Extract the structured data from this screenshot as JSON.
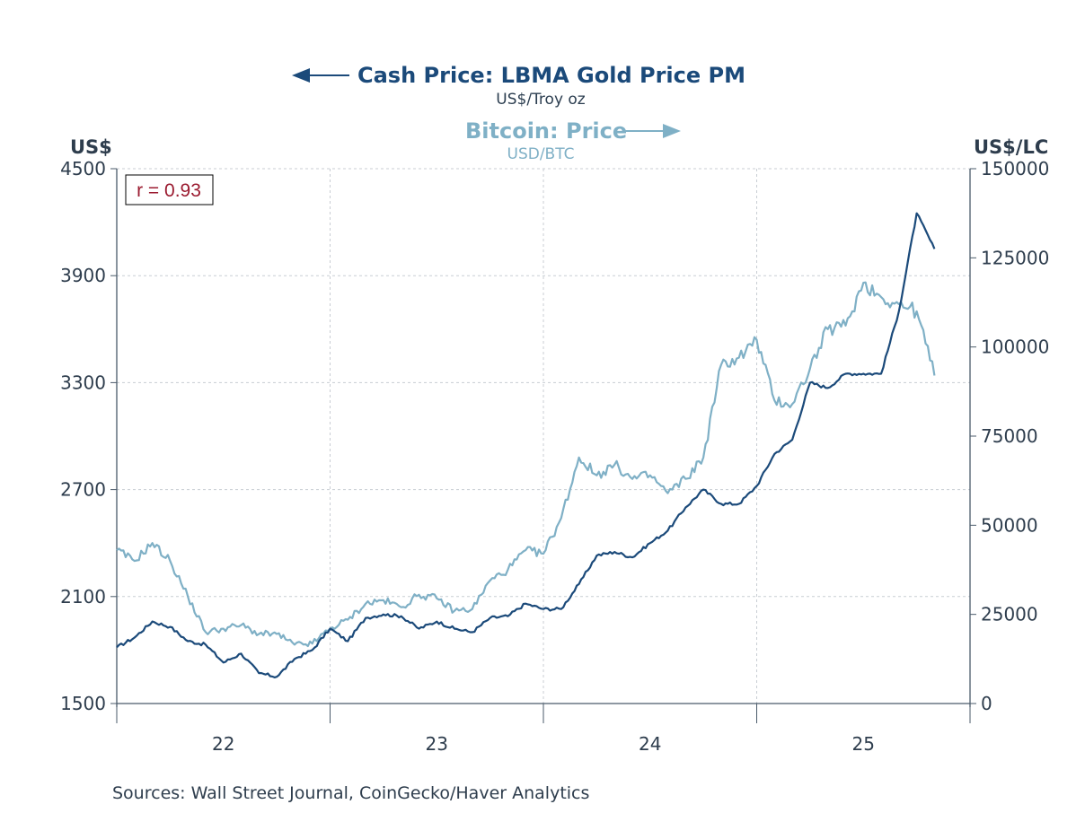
{
  "chart_data": {
    "type": "line",
    "title": "Cash Price: LBMA Gold Price PM vs Bitcoin: Price",
    "series": [
      {
        "name": "Cash Price: LBMA Gold Price PM",
        "units": "US$/Troy oz",
        "axis": "left",
        "color": "#1b4a7a",
        "x": [
          "2022-01",
          "2022-02",
          "2022-03",
          "2022-04",
          "2022-05",
          "2022-06",
          "2022-07",
          "2022-08",
          "2022-09",
          "2022-10",
          "2022-11",
          "2022-12",
          "2023-01",
          "2023-02",
          "2023-03",
          "2023-04",
          "2023-05",
          "2023-06",
          "2023-07",
          "2023-08",
          "2023-09",
          "2023-10",
          "2023-11",
          "2023-12",
          "2024-01",
          "2024-02",
          "2024-03",
          "2024-04",
          "2024-05",
          "2024-06",
          "2024-07",
          "2024-08",
          "2024-09",
          "2024-10",
          "2024-11",
          "2024-12",
          "2025-01",
          "2025-02",
          "2025-03",
          "2025-04",
          "2025-05",
          "2025-06",
          "2025-07",
          "2025-08",
          "2025-09",
          "2025-10",
          "2025-11"
        ],
        "values": [
          1815,
          1870,
          1960,
          1930,
          1850,
          1830,
          1730,
          1780,
          1670,
          1650,
          1750,
          1800,
          1920,
          1850,
          1980,
          2000,
          1990,
          1920,
          1960,
          1920,
          1900,
          1980,
          1990,
          2060,
          2030,
          2030,
          2170,
          2330,
          2350,
          2320,
          2400,
          2470,
          2600,
          2700,
          2620,
          2620,
          2720,
          2900,
          2980,
          3300,
          3270,
          3350,
          3350,
          3350,
          3700,
          4250,
          4050
        ]
      },
      {
        "name": "Bitcoin: Price",
        "units": "USD/BTC",
        "axis": "right",
        "color": "#7fb0c6",
        "x": [
          "2022-01",
          "2022-02",
          "2022-03",
          "2022-04",
          "2022-05",
          "2022-06",
          "2022-07",
          "2022-08",
          "2022-09",
          "2022-10",
          "2022-11",
          "2022-12",
          "2023-01",
          "2023-02",
          "2023-03",
          "2023-04",
          "2023-05",
          "2023-06",
          "2023-07",
          "2023-08",
          "2023-09",
          "2023-10",
          "2023-11",
          "2023-12",
          "2024-01",
          "2024-02",
          "2024-03",
          "2024-04",
          "2024-05",
          "2024-06",
          "2024-07",
          "2024-08",
          "2024-09",
          "2024-10",
          "2024-11",
          "2024-12",
          "2025-01",
          "2025-02",
          "2025-03",
          "2025-04",
          "2025-05",
          "2025-06",
          "2025-07",
          "2025-08",
          "2025-09",
          "2025-10",
          "2025-11"
        ],
        "values": [
          43000,
          40000,
          45000,
          40000,
          30000,
          20000,
          21000,
          22000,
          19500,
          19500,
          16500,
          16800,
          21000,
          23500,
          28000,
          29000,
          27000,
          30500,
          29500,
          26000,
          26500,
          34500,
          37500,
          43000,
          42000,
          52000,
          69000,
          64000,
          67000,
          63000,
          64000,
          59000,
          63000,
          69000,
          95000,
          97000,
          102000,
          85000,
          84000,
          94000,
          105000,
          106000,
          118000,
          114000,
          112000,
          110000,
          92000
        ]
      }
    ],
    "left_axis": {
      "label": "US$",
      "ylim": [
        1500,
        4500
      ],
      "ticks": [
        1500,
        2100,
        2700,
        3300,
        3900,
        4500
      ]
    },
    "right_axis": {
      "label": "US$/LC",
      "ylim": [
        0,
        150000
      ],
      "ticks": [
        0,
        25000,
        50000,
        75000,
        100000,
        125000,
        150000
      ]
    },
    "x_axis": {
      "tick_labels": [
        "22",
        "23",
        "24",
        "25"
      ],
      "range": [
        "2022-01",
        "2026-01"
      ]
    },
    "grid": true,
    "legend_placement": "top-center",
    "annotations": [
      "r = 0.93"
    ]
  },
  "legend": {
    "gold_title": "Cash Price: LBMA Gold Price PM",
    "gold_units": "US$/Troy oz",
    "btc_title": "Bitcoin: Price",
    "btc_units": "USD/BTC"
  },
  "axes": {
    "left_unit": "US$",
    "right_unit": "US$/LC",
    "left_ticks": [
      "4500",
      "3900",
      "3300",
      "2700",
      "2100",
      "1500"
    ],
    "right_ticks": [
      "150000",
      "125000",
      "100000",
      "75000",
      "50000",
      "25000",
      "0"
    ],
    "x_ticks": [
      "22",
      "23",
      "24",
      "25"
    ]
  },
  "annotation": {
    "correlation": "r = 0.93"
  },
  "footer": {
    "sources": "Sources:  Wall Street Journal, CoinGecko/Haver Analytics"
  }
}
